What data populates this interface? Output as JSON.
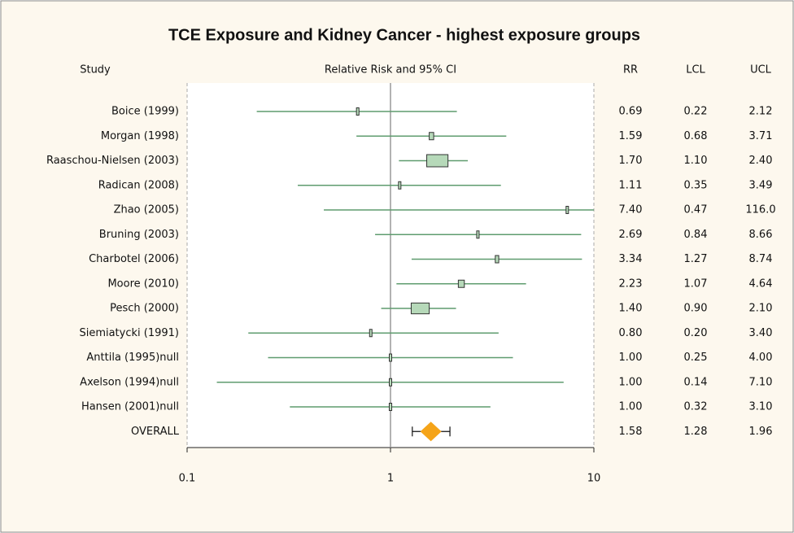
{
  "chart_data": {
    "type": "forest",
    "title": "TCE Exposure and Kidney Cancer - highest exposure groups",
    "category_header": "Study",
    "x_label": "Relative Risk and 95% CI",
    "categories": [
      "Boice (1999)",
      "Morgan (1998)",
      "Raaschou-Nielsen (2003)",
      "Radican (2008)",
      "Zhao (2005)",
      "Bruning (2003)",
      "Charbotel (2006)",
      "Moore (2010)",
      "Pesch (2000)",
      "Siemiatycki (1991)",
      "Anttila (1995)null",
      "Axelson (1994)null",
      "Hansen (2001)null"
    ],
    "series": [
      {
        "name": "RR",
        "values": [
          0.69,
          1.59,
          1.7,
          1.11,
          7.4,
          2.69,
          3.34,
          2.23,
          1.4,
          0.8,
          1,
          1,
          1
        ],
        "value_labels": [
          "0.69",
          "1.59",
          "1.70",
          "1.11",
          "7.40",
          "2.69",
          "3.34",
          "2.23",
          "1.40",
          "0.80",
          "1.00",
          "1.00",
          "1.00"
        ]
      },
      {
        "name": "LCL",
        "values": [
          0.22,
          0.68,
          1.1,
          0.35,
          0.47,
          0.84,
          1.27,
          1.07,
          0.9,
          0.2,
          0.25,
          0.14,
          0.32
        ],
        "value_labels": [
          "0.22",
          "0.68",
          "1.10",
          "0.35",
          "0.47",
          "0.84",
          "1.27",
          "1.07",
          "0.90",
          "0.20",
          "0.25",
          "0.14",
          "0.32"
        ]
      },
      {
        "name": "UCL",
        "values": [
          2.12,
          3.71,
          2.4,
          3.49,
          116,
          8.66,
          8.74,
          4.64,
          2.1,
          3.4,
          4,
          7.1,
          3.1
        ],
        "value_labels": [
          "2.12",
          "3.71",
          "2.40",
          "3.49",
          "116.0",
          "8.66",
          "8.74",
          "4.64",
          "2.10",
          "3.40",
          "4.00",
          "7.10",
          "3.10"
        ]
      }
    ],
    "overall": {
      "label": "OVERALL",
      "values": [
        1.58,
        1.28,
        1.96
      ],
      "value_labels": [
        "1.58",
        "1.28",
        "1.96"
      ]
    },
    "xlim": [
      0.1,
      10
    ],
    "xticks": [
      0.1,
      1,
      10
    ],
    "log_scale": true,
    "reference_line": 1,
    "line_color": "#5f9c6f",
    "box_color": "#b6d9b9",
    "overall_color": "#f5a419"
  }
}
